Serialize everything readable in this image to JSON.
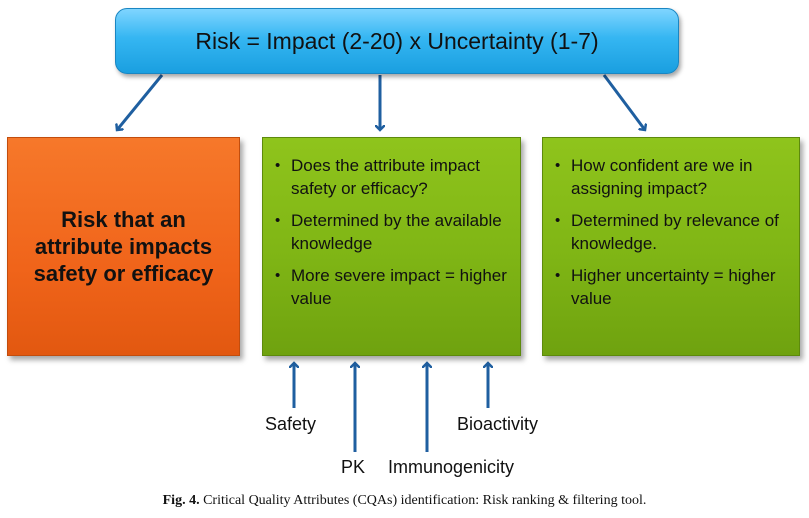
{
  "formula": "Risk = Impact (2-20) x Uncertainty (1-7)",
  "risk_box": {
    "text": "Risk that an attribute impacts safety or efficacy"
  },
  "impact_box": {
    "bullets": [
      "Does the attribute impact safety or efficacy?",
      "Determined by the available knowledge",
      "More severe impact = higher value"
    ]
  },
  "uncertainty_box": {
    "bullets": [
      "How confident are we in assigning impact?",
      "Determined by relevance of knowledge.",
      "Higher uncertainty = higher value"
    ]
  },
  "inputs": {
    "safety": "Safety",
    "pk": "PK",
    "immunogenicity": "Immunogenicity",
    "bioactivity": "Bioactivity"
  },
  "caption": {
    "label": "Fig. 4.",
    "text": "Critical Quality Attributes (CQAs) identification: Risk ranking & filtering tool."
  },
  "colors": {
    "top_box": "#35b6f2",
    "risk_box": "#f0641a",
    "green_box": "#7fb515",
    "arrow": "#1f5fa0"
  }
}
